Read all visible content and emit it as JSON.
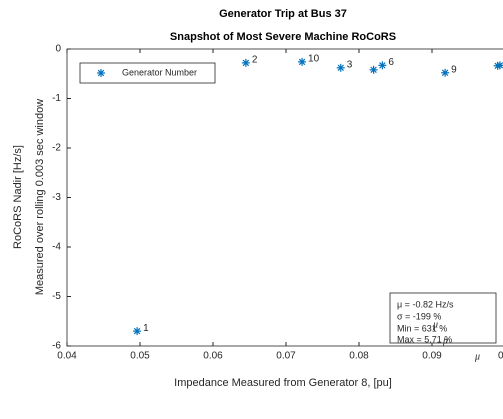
{
  "chart_data": {
    "type": "scatter",
    "title": "Generator Trip at Bus 37",
    "subtitle": "Snapshot of Most Severe Machine RoCoRS",
    "xlabel": "Impedance Measured from Generator 8, [pu]",
    "ylabel": [
      "RoCoRS Nadir [Hz/s]",
      "Measured over rolling 0.003 sec window"
    ],
    "series": [
      {
        "name": "Generator Number",
        "color": "#0072bd",
        "x": [
          0.0496,
          0.0645,
          0.0722,
          0.0775,
          0.082,
          0.0832,
          0.0918,
          0.099,
          0.0993
        ],
        "values": [
          -5.7,
          -0.28,
          -0.26,
          -0.38,
          -0.42,
          -0.33,
          -0.48,
          -0.34,
          -0.33
        ],
        "point_labels": [
          "1",
          "2",
          "10",
          "3",
          null,
          "6",
          "9",
          null,
          null
        ]
      }
    ],
    "xlim": [
      0.04,
      0.1
    ],
    "xticks": [
      0.04,
      0.05,
      0.06,
      0.07,
      0.08,
      0.09,
      0.1
    ],
    "ylim": [
      -6,
      0
    ],
    "yticks": [
      -6,
      -5,
      -4,
      -3,
      -2,
      -1,
      0
    ],
    "grid": false,
    "legend": "upper left",
    "annotations": [
      "μ = -0.82 Hz/s",
      "σ = -199 %",
      "Min = 631 %",
      "Max = 5.71 %",
      "μ",
      "μ",
      "μ"
    ]
  }
}
